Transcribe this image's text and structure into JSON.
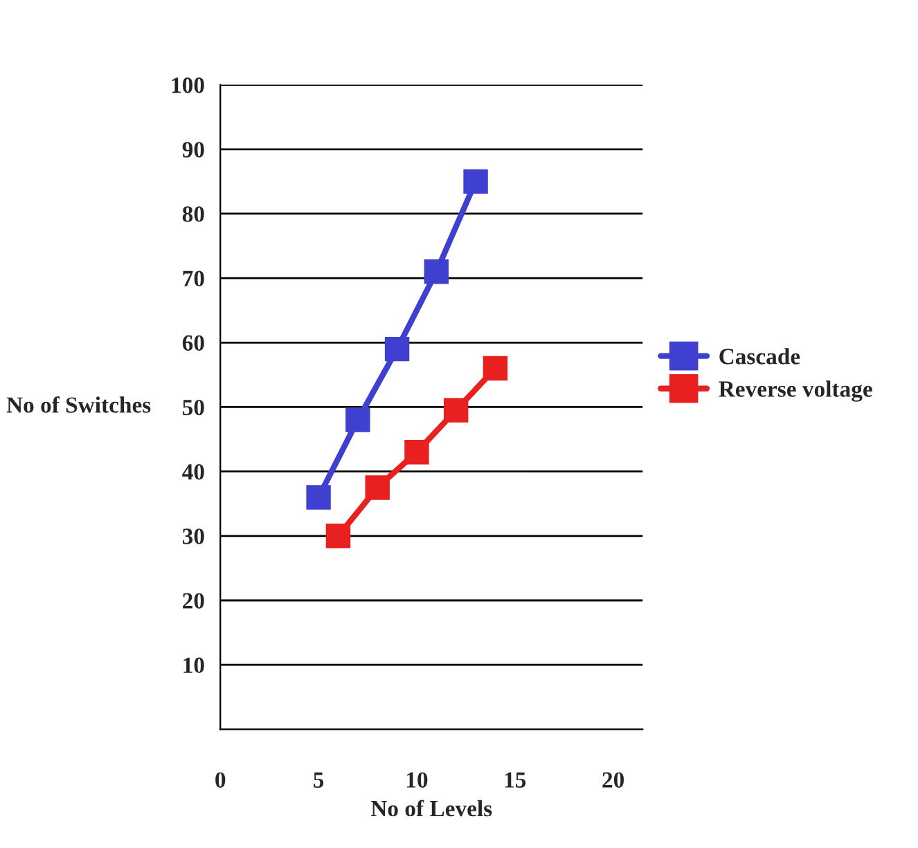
{
  "chart_data": {
    "type": "line",
    "xlabel": "No of Levels",
    "ylabel": "No of Switches",
    "xlim": [
      0,
      21.5
    ],
    "xticks": [
      0,
      5,
      10,
      15,
      20
    ],
    "ylim": [
      0,
      100
    ],
    "yticks": [
      10,
      20,
      30,
      40,
      50,
      60,
      70,
      80,
      90,
      100
    ],
    "grid": "y",
    "legend": "right",
    "marker": "square",
    "line_style": "solid",
    "series": [
      {
        "name": "Cascade",
        "color": "#4040d0",
        "x": [
          5,
          7,
          9,
          11,
          13
        ],
        "values": [
          36,
          48,
          59,
          71,
          85
        ]
      },
      {
        "name": "Reverse voltage",
        "color": "#e82020",
        "x": [
          6,
          8,
          10,
          12,
          14
        ],
        "values": [
          30,
          37.5,
          43,
          49.5,
          56
        ]
      }
    ]
  }
}
